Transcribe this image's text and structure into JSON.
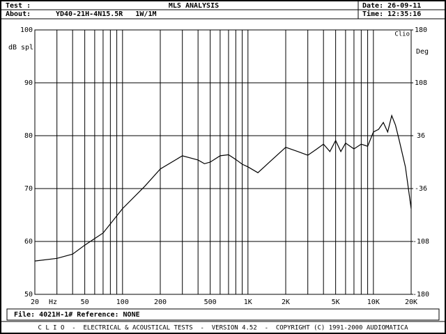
{
  "header": {
    "test_label": "Test :",
    "title": "MLS ANALYSIS",
    "date": "Date: 26-09-11",
    "about_label": "About:",
    "about": "YD40-21H-4N15.5R   1W/1M",
    "time": "Time: 12:35:16"
  },
  "footer": {
    "file": "File: 4021H-1# Reference: NONE",
    "credits": "C L I O  -  ELECTRICAL & ACOUSTICAL TESTS  -  VERSION 4.52  -  COPYRIGHT (C) 1991-2000 AUDIOMATICA"
  },
  "chart_data": {
    "type": "line",
    "log_x": true,
    "grid": true,
    "color": "#000000",
    "ylabel": "dB spl",
    "y2label": "Deg",
    "xlabel": "Hz",
    "corner_label": "Clio",
    "x": [
      20,
      30,
      40,
      50,
      70,
      100,
      150,
      200,
      300,
      400,
      450,
      500,
      600,
      700,
      800,
      900,
      1000,
      1200,
      1500,
      2000,
      2500,
      3000,
      3500,
      4000,
      4500,
      5000,
      5500,
      6000,
      7000,
      8000,
      9000,
      10000,
      11000,
      12000,
      13000,
      14000,
      15000,
      16000,
      18000,
      20000
    ],
    "values": [
      56.3,
      56.8,
      57.6,
      59.3,
      61.6,
      66.2,
      70.4,
      73.7,
      76.2,
      75.4,
      74.7,
      75.0,
      76.2,
      76.4,
      75.5,
      74.6,
      74.1,
      73.0,
      75.1,
      77.8,
      77.0,
      76.3,
      77.4,
      78.4,
      77.0,
      79.1,
      77.0,
      78.6,
      77.5,
      78.4,
      78.0,
      80.7,
      81.2,
      82.5,
      80.7,
      83.8,
      82.0,
      79.3,
      74.1,
      66.2
    ],
    "xlim": [
      20,
      20000
    ],
    "xticks": [
      20,
      50,
      100,
      200,
      500,
      {
        "value": 1000,
        "label": "1K"
      },
      {
        "value": 2000,
        "label": "2K"
      },
      {
        "value": 5000,
        "label": "5K"
      },
      {
        "value": 10000,
        "label": "10K"
      },
      {
        "value": 20000,
        "label": "20K"
      }
    ],
    "xminor": [
      30,
      40,
      60,
      70,
      80,
      90,
      300,
      400,
      600,
      700,
      800,
      900,
      3000,
      4000,
      6000,
      7000,
      8000,
      9000
    ],
    "ylim": [
      50,
      100
    ],
    "yticks": [
      50,
      60,
      70,
      80,
      90,
      100
    ],
    "y2lim": [
      -180,
      180
    ],
    "y2ticks": [
      -180,
      -108,
      -36,
      36,
      108,
      180
    ]
  }
}
